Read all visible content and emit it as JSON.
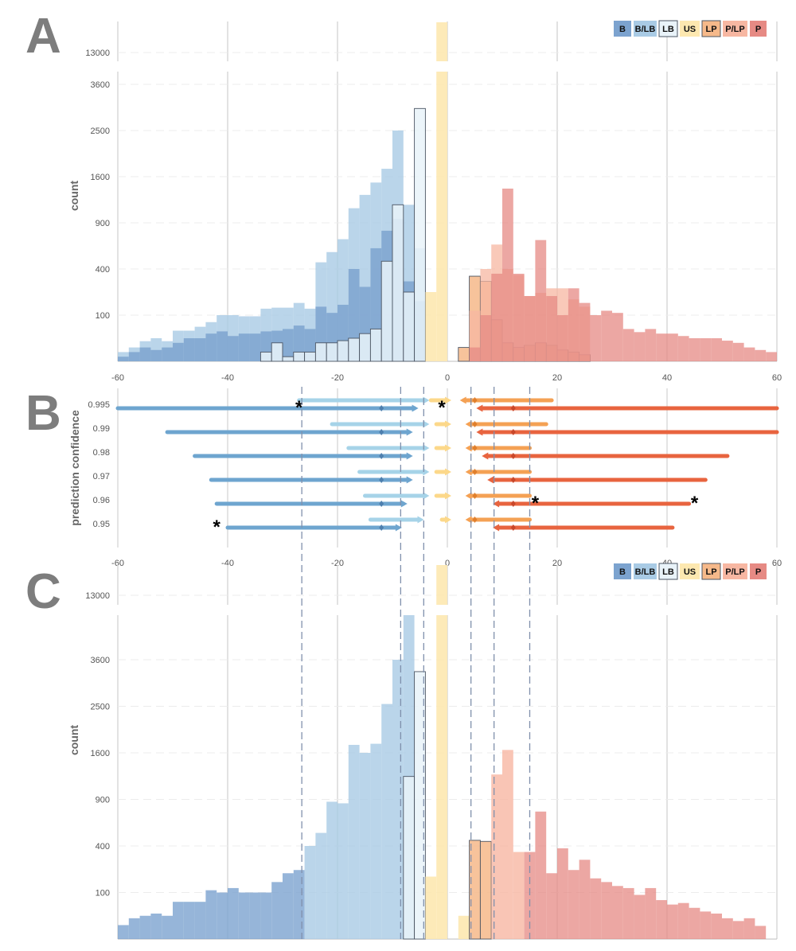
{
  "panels": {
    "a": "A",
    "b": "B",
    "c": "C"
  },
  "legend": [
    "B",
    "B/LB",
    "LB",
    "US",
    "LP",
    "P/LP",
    "P"
  ],
  "colors": {
    "B": "#7ca3cf",
    "B/LB": "#a9cbe5",
    "LB": "#e9f3f9",
    "US": "#fde8b0",
    "LP": "#f6b98a",
    "P/LP": "#f7b7a2",
    "P": "#e68a84",
    "lineB": "#6ea5cf",
    "lineBLB": "#a6d3e8",
    "lineUS": "#fcd88a",
    "lineLP": "#f4a154",
    "lineP": "#e8643f",
    "dashed": "#8090ac"
  },
  "panel_a": {
    "ylabel": "count",
    "ytick_labels": [
      "100",
      "400",
      "900",
      "1600",
      "2500",
      "3600",
      "13000"
    ],
    "xtick_labels": [
      "-60",
      "-40",
      "-20",
      "0",
      "20",
      "40",
      "60"
    ]
  },
  "panel_b": {
    "ylabel": "prediction confidence",
    "ytick_labels": [
      "0.995",
      "0.99",
      "0.98",
      "0.97",
      "0.96",
      "0.95"
    ],
    "xtick_labels": [
      "-60",
      "-40",
      "-20",
      "0",
      "20",
      "40",
      "60"
    ],
    "star": "*"
  },
  "panel_c": {
    "ylabel": "count",
    "ytick_labels": [
      "100",
      "400",
      "900",
      "1600",
      "2500",
      "3600",
      "13000"
    ]
  },
  "chart_data": [
    {
      "type": "bar",
      "panel": "A",
      "xlim": [
        -60,
        60
      ],
      "y_scale": "sqrt (broken axis)",
      "bin_width": 2,
      "series": [
        {
          "name": "B/LB",
          "bins": [
            [
              -59,
              4
            ],
            [
              -57,
              9
            ],
            [
              -55,
              19
            ],
            [
              -53,
              25
            ],
            [
              -51,
              19
            ],
            [
              -49,
              44
            ],
            [
              -47,
              44
            ],
            [
              -45,
              56
            ],
            [
              -43,
              72
            ],
            [
              -41,
              100
            ],
            [
              -39,
              100
            ],
            [
              -37,
              95
            ],
            [
              -35,
              95
            ],
            [
              -33,
              130
            ],
            [
              -31,
              135
            ],
            [
              -29,
              135
            ],
            [
              -27,
              160
            ],
            [
              -25,
              130
            ],
            [
              -23,
              460
            ],
            [
              -21,
              560
            ],
            [
              -19,
              700
            ],
            [
              -17,
              1100
            ],
            [
              -15,
              1300
            ],
            [
              -13,
              1500
            ],
            [
              -11,
              1740
            ],
            [
              -9,
              2500
            ],
            [
              -7,
              1150
            ],
            [
              -5,
              600
            ]
          ]
        },
        {
          "name": "B",
          "bins": [
            [
              -59,
              1
            ],
            [
              -57,
              4
            ],
            [
              -55,
              9
            ],
            [
              -53,
              6
            ],
            [
              -51,
              9
            ],
            [
              -49,
              16
            ],
            [
              -47,
              25
            ],
            [
              -45,
              25
            ],
            [
              -43,
              36
            ],
            [
              -41,
              42
            ],
            [
              -39,
              30
            ],
            [
              -37,
              36
            ],
            [
              -35,
              36
            ],
            [
              -33,
              42
            ],
            [
              -31,
              44
            ],
            [
              -29,
              49
            ],
            [
              -27,
              60
            ],
            [
              -25,
              49
            ],
            [
              -23,
              140
            ],
            [
              -21,
              110
            ],
            [
              -19,
              150
            ],
            [
              -17,
              400
            ],
            [
              -15,
              260
            ],
            [
              -13,
              600
            ],
            [
              -11,
              800
            ],
            [
              -9,
              950
            ],
            [
              -7,
              300
            ],
            [
              -5,
              170
            ]
          ]
        },
        {
          "name": "LB",
          "bins": [
            [
              -33,
              4
            ],
            [
              -31,
              16
            ],
            [
              -29,
              1
            ],
            [
              -27,
              4
            ],
            [
              -25,
              4
            ],
            [
              -23,
              16
            ],
            [
              -21,
              16
            ],
            [
              -19,
              20
            ],
            [
              -17,
              25
            ],
            [
              -15,
              36
            ],
            [
              -13,
              49
            ],
            [
              -11,
              470
            ],
            [
              -9,
              1150
            ],
            [
              -7,
              225
            ],
            [
              -5,
              3000
            ]
          ]
        },
        {
          "name": "US",
          "bins": [
            [
              -3,
              225
            ],
            [
              -1,
              13000
            ],
            [
              1,
              0
            ]
          ]
        },
        {
          "name": "LP",
          "bins": [
            [
              3,
              9
            ],
            [
              5,
              340
            ],
            [
              7,
              300
            ],
            [
              9,
              81
            ],
            [
              11,
              16
            ],
            [
              13,
              9
            ],
            [
              15,
              12
            ],
            [
              17,
              16
            ],
            [
              19,
              12
            ],
            [
              21,
              6
            ],
            [
              23,
              4
            ],
            [
              25,
              2
            ]
          ]
        },
        {
          "name": "P/LP",
          "bins": [
            [
              5,
              120
            ],
            [
              7,
              400
            ],
            [
              9,
              640
            ],
            [
              11,
              400
            ],
            [
              13,
              350
            ],
            [
              15,
              200
            ],
            [
              17,
              220
            ],
            [
              19,
              250
            ],
            [
              21,
              250
            ],
            [
              23,
              180
            ],
            [
              25,
              140
            ]
          ]
        },
        {
          "name": "P",
          "bins": [
            [
              5,
              9
            ],
            [
              7,
              100
            ],
            [
              9,
              360
            ],
            [
              11,
              1400
            ],
            [
              13,
              360
            ],
            [
              15,
              200
            ],
            [
              17,
              690
            ],
            [
              19,
              200
            ],
            [
              21,
              100
            ],
            [
              23,
              250
            ],
            [
              25,
              160
            ],
            [
              27,
              100
            ],
            [
              29,
              120
            ],
            [
              31,
              110
            ],
            [
              33,
              49
            ],
            [
              35,
              40
            ],
            [
              37,
              49
            ],
            [
              39,
              36
            ],
            [
              41,
              36
            ],
            [
              43,
              30
            ],
            [
              45,
              25
            ],
            [
              47,
              25
            ],
            [
              49,
              25
            ],
            [
              51,
              20
            ],
            [
              53,
              16
            ],
            [
              55,
              9
            ],
            [
              57,
              6
            ],
            [
              59,
              4
            ]
          ]
        }
      ]
    },
    {
      "type": "scatter",
      "panel": "B",
      "xlim": [
        -60,
        60
      ],
      "categories": [
        "0.995",
        "0.99",
        "0.98",
        "0.97",
        "0.96",
        "0.95"
      ],
      "series": [
        {
          "name": "B",
          "intervals": [
            [
              -60,
              -6
            ],
            [
              -51,
              -7
            ],
            [
              -46,
              -7
            ],
            [
              -43,
              -7
            ],
            [
              -42,
              -8
            ],
            [
              -40,
              -9
            ]
          ],
          "points": [
            -12,
            -12,
            -12,
            -12,
            -12,
            -12
          ]
        },
        {
          "name": "B/LB",
          "intervals": [
            [
              -27,
              -4
            ],
            [
              -21,
              -4
            ],
            [
              -18,
              -4
            ],
            [
              -16,
              -4
            ],
            [
              -15,
              -4
            ],
            [
              -14,
              -5
            ]
          ]
        },
        {
          "name": "US",
          "intervals": [
            [
              -3,
              0
            ],
            [
              -2,
              0
            ],
            [
              -2,
              0
            ],
            [
              -2,
              0
            ],
            [
              -2,
              0
            ],
            [
              -1,
              0
            ]
          ]
        },
        {
          "name": "LP",
          "intervals": [
            [
              3,
              19
            ],
            [
              4,
              18
            ],
            [
              4,
              15
            ],
            [
              4,
              15
            ],
            [
              4,
              15
            ],
            [
              4,
              15
            ]
          ],
          "points": [
            5,
            5,
            5,
            5,
            5,
            5
          ]
        },
        {
          "name": "P",
          "intervals": [
            [
              6,
              60
            ],
            [
              6,
              60
            ],
            [
              7,
              51
            ],
            [
              8,
              47
            ],
            [
              9,
              44
            ],
            [
              9,
              41
            ]
          ],
          "points": [
            12,
            12,
            12,
            12,
            12,
            12
          ]
        }
      ],
      "starred": [
        {
          "confidence": "0.995",
          "x": -27
        },
        {
          "confidence": "0.995",
          "x": -1
        },
        {
          "confidence": "0.96",
          "x": 16
        },
        {
          "confidence": "0.96",
          "x": 45
        },
        {
          "confidence": "0.95",
          "x": -42
        }
      ],
      "thresholds": [
        -26.5,
        -8.5,
        -4.3,
        4.3,
        8.5,
        15
      ]
    },
    {
      "type": "bar",
      "panel": "C",
      "xlim": [
        -60,
        60
      ],
      "y_scale": "sqrt (broken axis)",
      "bin_width": 2,
      "series": [
        {
          "name": "B",
          "bins": [
            [
              -59,
              9
            ],
            [
              -57,
              20
            ],
            [
              -55,
              25
            ],
            [
              -53,
              30
            ],
            [
              -51,
              25
            ],
            [
              -49,
              64
            ],
            [
              -47,
              64
            ],
            [
              -45,
              64
            ],
            [
              -43,
              110
            ],
            [
              -41,
              100
            ],
            [
              -39,
              120
            ],
            [
              -37,
              100
            ],
            [
              -35,
              100
            ],
            [
              -33,
              100
            ],
            [
              -31,
              150
            ],
            [
              -29,
              200
            ],
            [
              -27,
              220
            ]
          ]
        },
        {
          "name": "B/LB",
          "bins": [
            [
              -25,
              400
            ],
            [
              -23,
              520
            ],
            [
              -21,
              870
            ],
            [
              -19,
              850
            ],
            [
              -17,
              1740
            ],
            [
              -15,
              1600
            ],
            [
              -13,
              1760
            ],
            [
              -11,
              2550
            ],
            [
              -9,
              3600
            ],
            [
              -7,
              5000
            ]
          ]
        },
        {
          "name": "LB",
          "bins": [
            [
              -7,
              1220
            ],
            [
              -5,
              3300
            ]
          ]
        },
        {
          "name": "US",
          "bins": [
            [
              -3,
              180
            ],
            [
              -1,
              13000
            ],
            [
              1,
              0
            ],
            [
              3,
              25
            ]
          ]
        },
        {
          "name": "LP",
          "bins": [
            [
              5,
              450
            ],
            [
              7,
              440
            ]
          ]
        },
        {
          "name": "P/LP",
          "bins": [
            [
              9,
              1250
            ],
            [
              11,
              1650
            ],
            [
              13,
              350
            ]
          ]
        },
        {
          "name": "P",
          "bins": [
            [
              15,
              350
            ],
            [
              17,
              750
            ],
            [
              19,
              200
            ],
            [
              21,
              380
            ],
            [
              23,
              220
            ],
            [
              25,
              290
            ],
            [
              27,
              170
            ],
            [
              29,
              150
            ],
            [
              31,
              130
            ],
            [
              33,
              120
            ],
            [
              35,
              90
            ],
            [
              37,
              120
            ],
            [
              39,
              70
            ],
            [
              41,
              55
            ],
            [
              43,
              60
            ],
            [
              45,
              45
            ],
            [
              47,
              35
            ],
            [
              49,
              30
            ],
            [
              51,
              20
            ],
            [
              53,
              15
            ],
            [
              55,
              20
            ],
            [
              57,
              8
            ]
          ]
        }
      ]
    }
  ]
}
